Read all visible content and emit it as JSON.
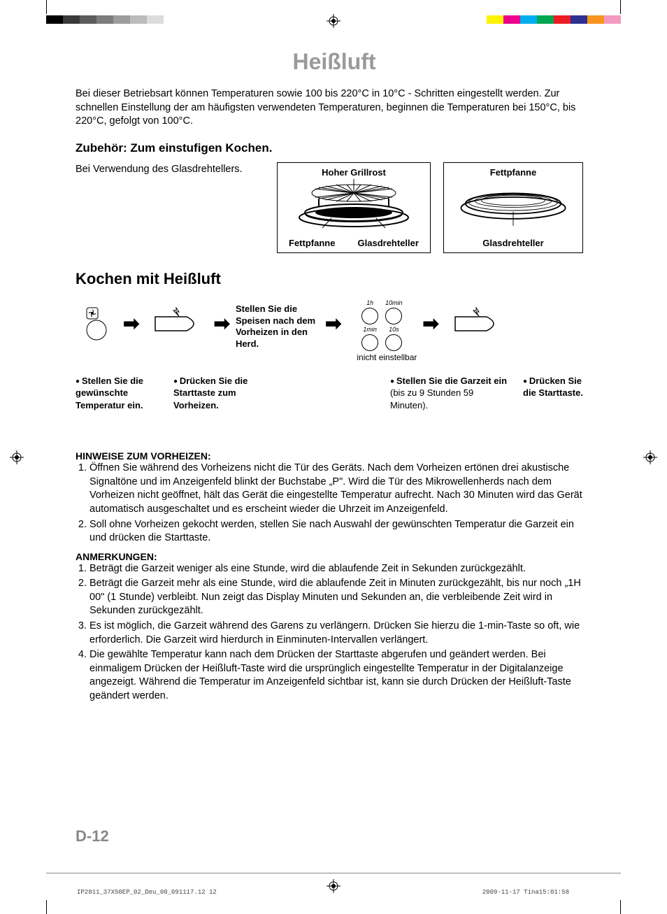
{
  "colorbar_left": [
    "#000000",
    "#3a3a3a",
    "#5c5c5c",
    "#7d7d7d",
    "#9c9c9c",
    "#bcbcbc",
    "#dcdcdc",
    "#ffffff"
  ],
  "colorbar_right": [
    "#fff200",
    "#ec008c",
    "#00aeef",
    "#00a651",
    "#ed1c24",
    "#2e3192",
    "#f7941d",
    "#f49ac1"
  ],
  "title": "Heißluft",
  "intro": "Bei dieser Betriebsart können Temperaturen sowie 100 bis 220°C in 10°C - Schritten eingestellt werden. Zur schnellen Einstellung der am häufigsten verwendeten Temperaturen, beginnen die Temperaturen bei 150°C, bis 220°C, gefolgt von 100°C.",
  "sub1": "Zubehör: Zum einstufigen Kochen.",
  "acc_text": "Bei Verwendung des Glasdrehtellers.",
  "box1": {
    "top": "Hoher Grillrost",
    "bl": "Fettpfanne",
    "br": "Glasdrehteller"
  },
  "box2": {
    "top": "Fettpfanne",
    "b": "Glasdrehteller"
  },
  "section": "Kochen mit Heißluft",
  "flow_text": "Stellen Sie die Speisen nach dem Vorheizen in den Herd.",
  "dials": {
    "a": "1h",
    "b": "10min",
    "c": "1min",
    "d": "10s",
    "note": "inicht einstellbar"
  },
  "bullets": {
    "c1b": "Stellen Sie die gewünschte Temperatur ein.",
    "c2b": "Drücken Sie die Starttaste zum Vorheizen.",
    "c3b": "Stellen Sie die Garzeit ein",
    "c3": " (bis zu 9 Stunden 59 Minuten).",
    "c4b": "Drücken Sie die Starttaste."
  },
  "notes1_head": "HINWEISE ZUM VORHEIZEN:",
  "notes1": [
    "Öffnen Sie während des Vorheizens nicht die Tür des Geräts. Nach dem Vorheizen ertönen drei akustische Signaltöne und im Anzeigenfeld blinkt der Buchstabe „P\". Wird die Tür des Mikrowellenherds nach dem Vorheizen nicht geöffnet, hält das Gerät die eingestellte Temperatur aufrecht. Nach 30 Minuten wird das Gerät automatisch ausgeschaltet und es erscheint wieder die Uhrzeit im Anzeigenfeld.",
    "Soll ohne Vorheizen gekocht werden, stellen Sie nach Auswahl der gewünschten Temperatur die Garzeit ein und drücken die Starttaste."
  ],
  "notes2_head": "ANMERKUNGEN:",
  "notes2": [
    "Beträgt die Garzeit weniger als eine Stunde, wird die ablaufende Zeit in Sekunden zurückgezählt.",
    "Beträgt die Garzeit mehr als eine Stunde, wird die ablaufende Zeit in Minuten zurückgezählt, bis nur noch „1H 00\" (1 Stunde) verbleibt. Nun zeigt das Display Minuten und Sekunden an, die verbleibende Zeit wird in Sekunden zurückgezählt.",
    "Es ist möglich, die Garzeit während des Garens zu verlängern. Drücken Sie hierzu die 1-min-Taste so oft, wie erforderlich. Die Garzeit wird hierdurch in Einminuten-Intervallen verlängert.",
    "Die gewählte Temperatur kann nach dem Drücken der Starttaste abgerufen und geändert werden. Bei einmaligem Drücken der Heißluft-Taste wird die ursprünglich eingestellte Temperatur in der Digitalanzeige angezeigt. Während die Temperatur im Anzeigenfeld sichtbar ist, kann sie durch Drücken der Heißluft-Taste geändert werden."
  ],
  "page_num": "D-12",
  "footer": {
    "left": "IP2811_37X50EP_02_Deu_00_091117.12   12",
    "right": "2009-11-17   Tina15:01:58"
  }
}
